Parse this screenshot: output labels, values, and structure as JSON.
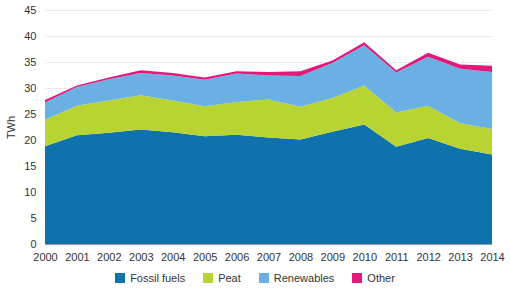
{
  "chart_data": {
    "type": "area",
    "stacked": true,
    "grid": true,
    "legend": "bottom",
    "ylabel": "TWh",
    "x": [
      2000,
      2001,
      2002,
      2003,
      2004,
      2005,
      2006,
      2007,
      2008,
      2009,
      2010,
      2011,
      2012,
      2013,
      2014
    ],
    "xlim": [
      2000,
      2014
    ],
    "xticks": [
      2000,
      2001,
      2002,
      2003,
      2004,
      2005,
      2006,
      2007,
      2008,
      2009,
      2010,
      2011,
      2012,
      2013,
      2014
    ],
    "ylim": [
      0,
      45
    ],
    "yticks": [
      0,
      5,
      10,
      15,
      20,
      25,
      30,
      35,
      40,
      45
    ],
    "series": [
      {
        "name": "Fossil fuels",
        "color": "#0f72ad",
        "values": [
          18.8,
          20.9,
          21.4,
          22.0,
          21.5,
          20.7,
          21.0,
          20.5,
          20.1,
          21.6,
          23.0,
          18.7,
          20.4,
          18.3,
          17.2
        ]
      },
      {
        "name": "Peat",
        "color": "#b7d432",
        "values": [
          5.1,
          5.7,
          6.2,
          6.6,
          6.1,
          5.8,
          6.3,
          7.3,
          6.3,
          6.5,
          7.5,
          6.6,
          6.2,
          4.9,
          4.9
        ]
      },
      {
        "name": "Renewables",
        "color": "#6bb0e3",
        "values": [
          3.3,
          3.6,
          4.1,
          4.3,
          4.8,
          5.1,
          5.5,
          4.6,
          5.9,
          6.7,
          7.7,
          7.7,
          9.4,
          10.5,
          11.0
        ]
      },
      {
        "name": "Other",
        "color": "#e0197b",
        "values": [
          0.5,
          0.3,
          0.3,
          0.5,
          0.5,
          0.4,
          0.4,
          0.7,
          0.9,
          0.5,
          0.6,
          0.4,
          0.8,
          0.8,
          1.2
        ]
      }
    ]
  }
}
